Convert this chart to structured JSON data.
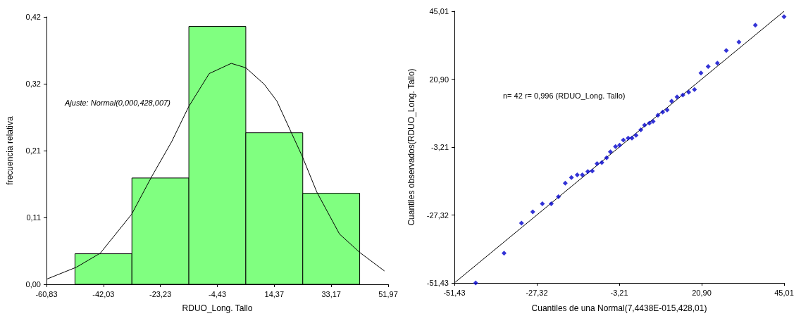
{
  "chart_data": [
    {
      "type": "histogram",
      "xlabel": "RDUO_Long. Tallo",
      "ylabel": "frecuencia relativa",
      "annotations": [
        "Ajuste: Normal(0,000,428,007)"
      ],
      "bins": [
        -51.43,
        -32.63,
        -13.83,
        4.97,
        23.77,
        42.57
      ],
      "values": [
        0.048,
        0.167,
        0.405,
        0.238,
        0.143
      ],
      "color": "#80ff80",
      "series": [
        {
          "type": "line",
          "color": "#000000",
          "x": [
            -60.83,
            -50.91,
            -43.06,
            -32.73,
            -26.12,
            -19.51,
            -13.89,
            -7.11,
            0.16,
            5.04,
            11.07,
            15.2,
            23.7,
            28.4,
            35.9,
            42.6,
            50.74
          ],
          "values": [
            0.008,
            0.027,
            0.049,
            0.11,
            0.169,
            0.224,
            0.279,
            0.331,
            0.347,
            0.34,
            0.314,
            0.288,
            0.2,
            0.145,
            0.079,
            0.05,
            0.021
          ]
        }
      ],
      "xlim": [
        -60.83,
        51.97
      ],
      "xticks": [
        {
          "value": -60.83,
          "label": "-60,83"
        },
        {
          "value": -42.03,
          "label": "-42,03"
        },
        {
          "value": -23.23,
          "label": "-23,23"
        },
        {
          "value": -4.43,
          "label": "-4,43"
        },
        {
          "value": 14.37,
          "label": "14,37"
        },
        {
          "value": 33.17,
          "label": "33,17"
        },
        {
          "value": 51.97,
          "label": "51,97"
        }
      ],
      "ylim": [
        0,
        0.42
      ],
      "yticks": [
        {
          "value": 0,
          "label": "0,00"
        },
        {
          "value": 0.105,
          "label": "0,11"
        },
        {
          "value": 0.21,
          "label": "0,21"
        },
        {
          "value": 0.315,
          "label": "0,32"
        },
        {
          "value": 0.42,
          "label": "0,42"
        }
      ]
    },
    {
      "type": "scatter",
      "xlabel": "Cuantiles de una Normal(7,4438E-015,428,01)",
      "ylabel": "Cuantiles observados(RDUO_Long. Tallo)",
      "annotations": [
        "n= 42 r= 0,996 (RDUO_Long. Tallo)"
      ],
      "series": [
        {
          "type": "scatter",
          "marker": "diamond",
          "color": "#0000cc",
          "x": [
            -45.2,
            -36.9,
            -31.8,
            -28.5,
            -25.7,
            -23.1,
            -21.0,
            -19.0,
            -17.2,
            -15.5,
            -14.0,
            -12.4,
            -11.1,
            -9.7,
            -8.3,
            -6.9,
            -5.8,
            -4.3,
            -3.1,
            -2.0,
            -0.6,
            0.5,
            1.7,
            3.1,
            4.2,
            5.6,
            6.7,
            8.1,
            9.5,
            10.8,
            12.1,
            13.7,
            15.4,
            17.1,
            18.8,
            20.7,
            22.8,
            25.5,
            28.1,
            31.8,
            36.6,
            45.0
          ],
          "values": [
            -51.4,
            -40.9,
            -30.2,
            -26.2,
            -23.3,
            -23.3,
            -20.8,
            -16.0,
            -14.0,
            -13.1,
            -13.1,
            -11.9,
            -11.7,
            -9.1,
            -8.7,
            -7.0,
            -4.9,
            -3.0,
            -2.5,
            -0.7,
            0.0,
            0.0,
            1.0,
            2.9,
            4.6,
            5.3,
            5.9,
            8.1,
            9.2,
            10.0,
            13.1,
            14.6,
            15.3,
            16.3,
            17.2,
            23.1,
            25.4,
            26.6,
            31.1,
            34.1,
            40.1,
            43.1
          ]
        },
        {
          "type": "line",
          "marker": "none",
          "color": "#000000",
          "x": [
            -51.4,
            45.0
          ],
          "values": [
            -51.4,
            45.0
          ]
        }
      ],
      "xlim": [
        -51.43,
        45.01
      ],
      "xticks": [
        {
          "value": -51.43,
          "label": "-51,43"
        },
        {
          "value": -27.32,
          "label": "-27,32"
        },
        {
          "value": -3.21,
          "label": "-3,21"
        },
        {
          "value": 20.9,
          "label": "20,90"
        },
        {
          "value": 45.01,
          "label": "45,01"
        }
      ],
      "ylim": [
        -51.43,
        45.01
      ],
      "yticks": [
        {
          "value": -51.43,
          "label": "-51,43"
        },
        {
          "value": -27.32,
          "label": "-27,32"
        },
        {
          "value": -3.21,
          "label": "-3,21"
        },
        {
          "value": 20.9,
          "label": "20,90"
        },
        {
          "value": 45.01,
          "label": "45,01"
        }
      ]
    }
  ]
}
